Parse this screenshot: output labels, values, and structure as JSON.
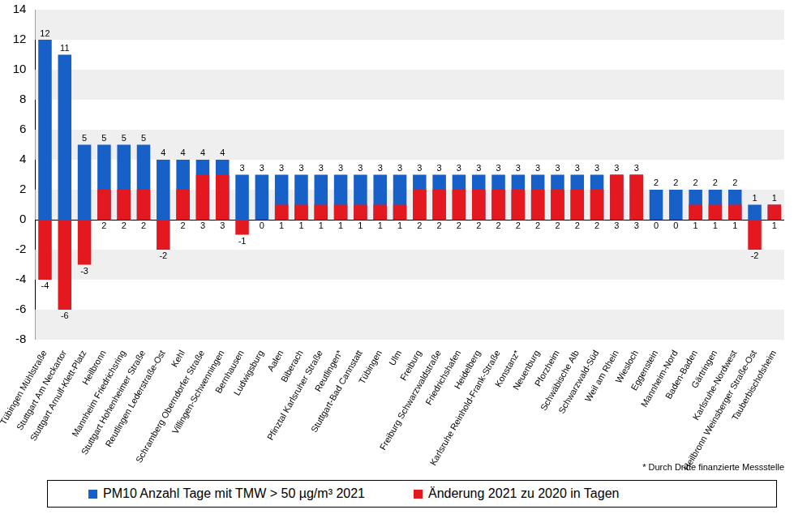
{
  "chart_data": {
    "type": "bar",
    "categories": [
      "Tübingen Mühlstraße",
      "Stuttgart Am Neckartor",
      "Stuttgart Arnulf-Klett-Platz",
      "Heilbronn",
      "Mannheim Friedrichsring",
      "Stuttgart Hohenheimer Straße",
      "Reutlingen Lederstraße-Ost",
      "Kehl",
      "Schramberg Oberndorfer Straße",
      "Villingen-Schwenningen",
      "Bernhausen",
      "Ludwigsburg",
      "Aalen",
      "Biberach",
      "Pfinztal Karlsruher Straße",
      "Reutlingen*",
      "Stuttgart-Bad Cannstatt",
      "Tübingen",
      "Ulm",
      "Freiburg",
      "Freiburg Schwarzwaldstraße",
      "Friedrichshafen",
      "Heidelberg",
      "Karlsruhe Reinhold-Frank-Straße",
      "Konstanz*",
      "Neuenburg",
      "Pforzheim",
      "Schwäbische Alb",
      "Schwarzwald-Süd",
      "Weil am Rhein",
      "Wiesloch",
      "Eggenstein",
      "Mannheim-Nord",
      "Baden-Baden",
      "Gärtringen",
      "Karlsruhe-Nordwest",
      "Heilbronn Weinsberger Straße-Ost",
      "Tauberbischofsheim"
    ],
    "series": [
      {
        "name": "PM10 Anzahl Tage mit TMW > 50 µg/m³ 2021",
        "color": "#1660c8",
        "values": [
          12,
          11,
          5,
          5,
          5,
          5,
          4,
          4,
          4,
          4,
          3,
          3,
          3,
          3,
          3,
          3,
          3,
          3,
          3,
          3,
          3,
          3,
          3,
          3,
          3,
          3,
          3,
          3,
          3,
          3,
          3,
          2,
          2,
          2,
          2,
          2,
          1,
          1
        ]
      },
      {
        "name": "Änderung 2021 zu 2020 in Tagen",
        "color": "#e3191f",
        "values": [
          -4,
          -6,
          -3,
          2,
          2,
          2,
          -2,
          2,
          3,
          3,
          -1,
          0,
          1,
          1,
          1,
          1,
          1,
          1,
          1,
          2,
          2,
          2,
          2,
          2,
          2,
          2,
          2,
          2,
          2,
          3,
          3,
          0,
          0,
          1,
          1,
          1,
          -2,
          1
        ]
      }
    ],
    "ylim": [
      -8,
      14
    ],
    "yticks": [
      -8,
      -6,
      -4,
      -2,
      0,
      2,
      4,
      6,
      8,
      10,
      12,
      14
    ],
    "grid": true,
    "data_labels": true,
    "legend": "bottom",
    "annotations": [
      "* Durch Dritte finanzierte Messstelle"
    ]
  }
}
